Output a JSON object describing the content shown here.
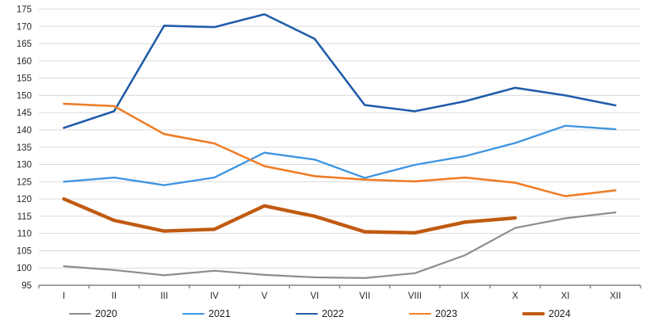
{
  "chart_data": {
    "type": "line",
    "title": "",
    "xlabel": "",
    "ylabel": "",
    "categories": [
      "I",
      "II",
      "III",
      "IV",
      "V",
      "VI",
      "VII",
      "VIII",
      "IX",
      "X",
      "XI",
      "XII"
    ],
    "y_axis": {
      "min": 95,
      "max": 175,
      "step": 5,
      "tick_labels": [
        "95",
        "100",
        "105",
        "110",
        "115",
        "120",
        "125",
        "130",
        "135",
        "140",
        "145",
        "150",
        "155",
        "160",
        "165",
        "170",
        "175"
      ]
    },
    "grid": "horizontal",
    "legend_position": "bottom",
    "series": [
      {
        "name": "2020",
        "color": "#8c8c8c",
        "line_width": 2.2,
        "values": [
          100.5,
          99.4,
          97.9,
          99.2,
          98.0,
          97.3,
          97.1,
          98.5,
          103.7,
          111.6,
          114.4,
          116.1
        ]
      },
      {
        "name": "2021",
        "color": "#3e95e1",
        "line_width": 2.4,
        "values": [
          125.0,
          126.2,
          124.0,
          126.2,
          133.4,
          131.4,
          126.1,
          129.9,
          132.4,
          136.2,
          141.2,
          140.2
        ]
      },
      {
        "name": "2022",
        "color": "#1f5ca9",
        "line_width": 2.6,
        "values": [
          140.6,
          145.4,
          170.2,
          169.8,
          173.5,
          166.4,
          147.2,
          145.4,
          148.3,
          152.2,
          150.0,
          147.1
        ]
      },
      {
        "name": "2023",
        "color": "#ef7d26",
        "line_width": 2.6,
        "values": [
          147.6,
          146.9,
          138.8,
          136.1,
          129.5,
          126.6,
          125.6,
          125.1,
          126.2,
          124.7,
          120.8,
          122.5
        ]
      },
      {
        "name": "2024",
        "color": "#c05a11",
        "line_width": 4.4,
        "values": [
          120.0,
          113.8,
          110.7,
          111.2,
          118.0,
          115.0,
          110.5,
          110.2,
          113.3,
          114.5,
          null,
          null
        ]
      }
    ]
  },
  "colors": {
    "gridline": "#d9d9d9",
    "axis": "#808080",
    "tick_text": "#262626",
    "background": "#ffffff"
  }
}
